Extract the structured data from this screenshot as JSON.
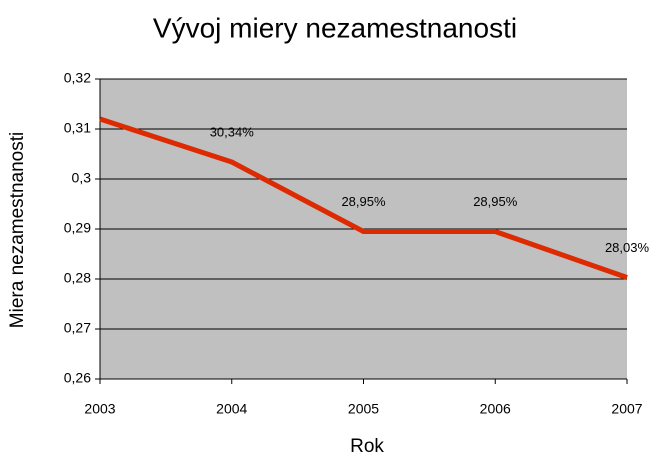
{
  "chart_data": {
    "type": "line",
    "title": "Vývoj miery nezamestnanosti",
    "x_label": "Rok",
    "y_label": "Miera nezamestnanosti",
    "categories": [
      "2003",
      "2004",
      "2005",
      "2006",
      "2007"
    ],
    "series": [
      {
        "name": "Miera nezamestnanosti",
        "color": "#dd2a00",
        "values": [
          0.312,
          0.3034,
          0.2895,
          0.2895,
          0.2803
        ],
        "value_labels": [
          null,
          "30,34%",
          "28,95%",
          "28,95%",
          "28,03%"
        ]
      }
    ],
    "ylim": [
      0.26,
      0.32
    ],
    "yticks": [
      {
        "value": 0.26,
        "label": "0,26"
      },
      {
        "value": 0.27,
        "label": "0,27"
      },
      {
        "value": 0.28,
        "label": "0,28"
      },
      {
        "value": 0.29,
        "label": "0,29"
      },
      {
        "value": 0.3,
        "label": "0,3"
      },
      {
        "value": 0.31,
        "label": "0,31"
      },
      {
        "value": 0.32,
        "label": "0,32"
      }
    ],
    "grid": true,
    "plot_background": "#c0c0c0"
  }
}
